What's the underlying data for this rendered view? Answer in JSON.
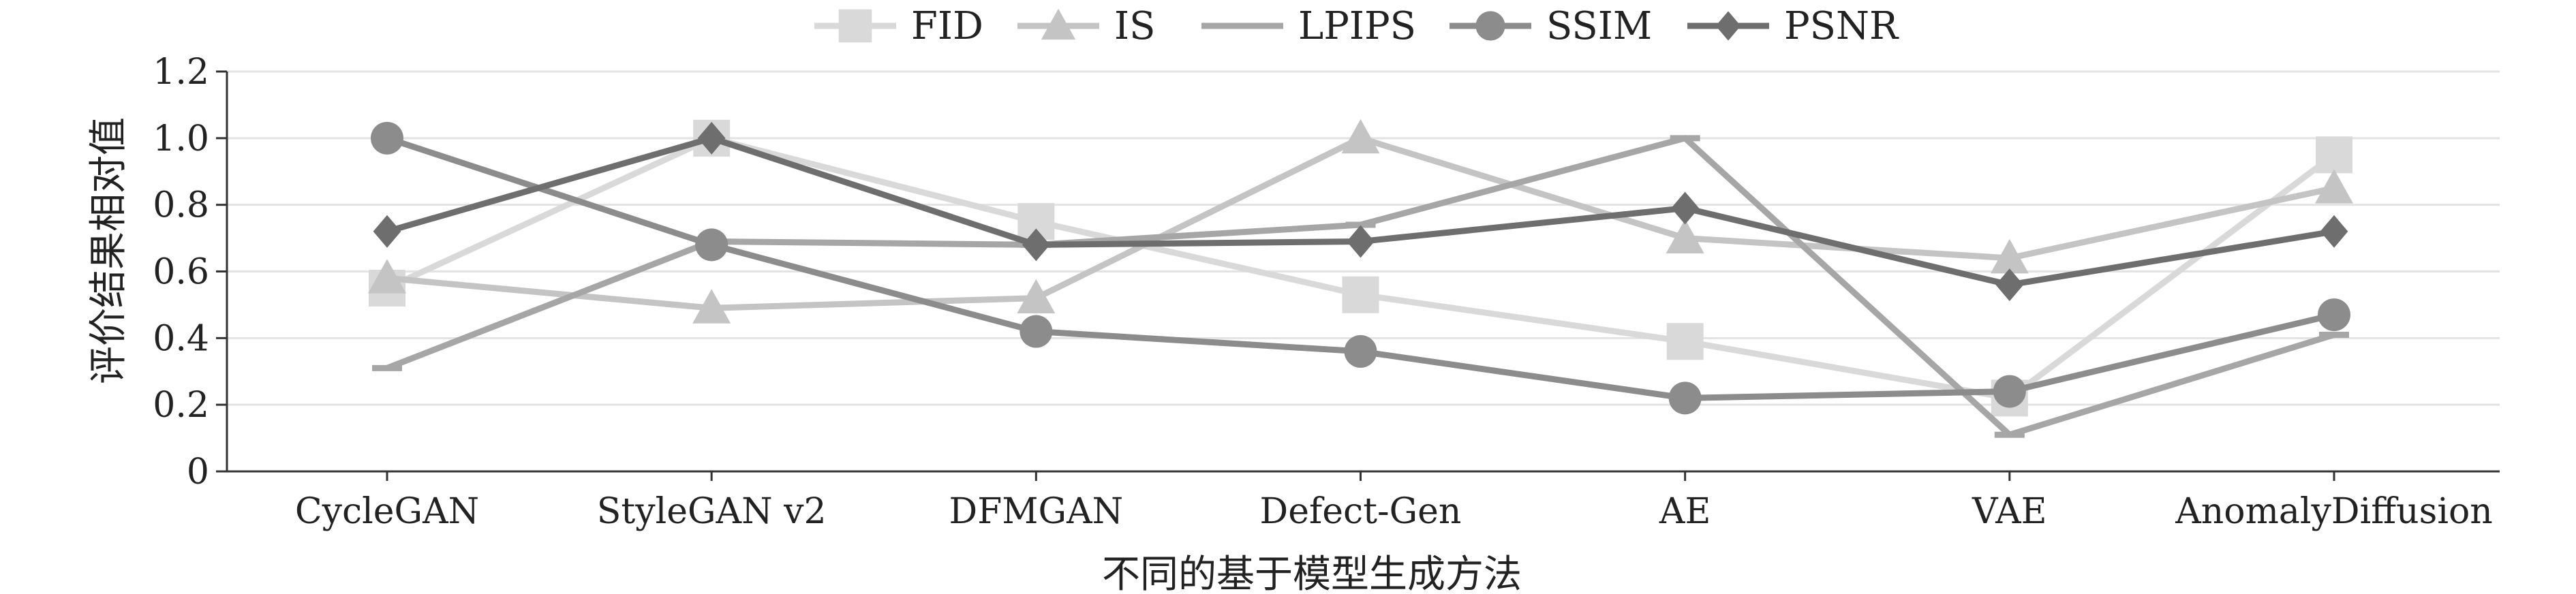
{
  "chart_data": {
    "type": "line",
    "categories": [
      "CycleGAN",
      "StyleGAN v2",
      "DFMGAN",
      "Defect-Gen",
      "AE",
      "VAE",
      "AnomalyDiffusion"
    ],
    "xlabel": "不同的基于模型生成方法",
    "ylabel": "评价结果相对值",
    "ylim": [
      0,
      1.2
    ],
    "yticks": [
      0,
      0.2,
      0.4,
      0.6,
      0.8,
      1.0,
      1.2
    ],
    "ytick_labels": [
      "0",
      "0.2",
      "0.4",
      "0.6",
      "0.8",
      "1.0",
      "1.2"
    ],
    "grid": "horizontal",
    "legend": "top-center",
    "series": [
      {
        "name": "FID",
        "marker": "square",
        "color": "#d9d9d9",
        "values": [
          0.55,
          1.0,
          0.75,
          0.53,
          0.39,
          0.22,
          0.95
        ]
      },
      {
        "name": "IS",
        "marker": "triangle",
        "color": "#c4c4c4",
        "values": [
          0.58,
          0.49,
          0.52,
          1.0,
          0.7,
          0.64,
          0.85
        ]
      },
      {
        "name": "LPIPS",
        "marker": "dash",
        "color": "#a6a6a6",
        "values": [
          0.31,
          0.69,
          0.68,
          0.74,
          1.0,
          0.11,
          0.41
        ]
      },
      {
        "name": "SSIM",
        "marker": "circle",
        "color": "#8c8c8c",
        "values": [
          1.0,
          0.68,
          0.42,
          0.36,
          0.22,
          0.24,
          0.47
        ]
      },
      {
        "name": "PSNR",
        "marker": "diamond",
        "color": "#6e6e6e",
        "values": [
          0.72,
          1.0,
          0.68,
          0.69,
          0.79,
          0.56,
          0.72
        ]
      }
    ]
  }
}
